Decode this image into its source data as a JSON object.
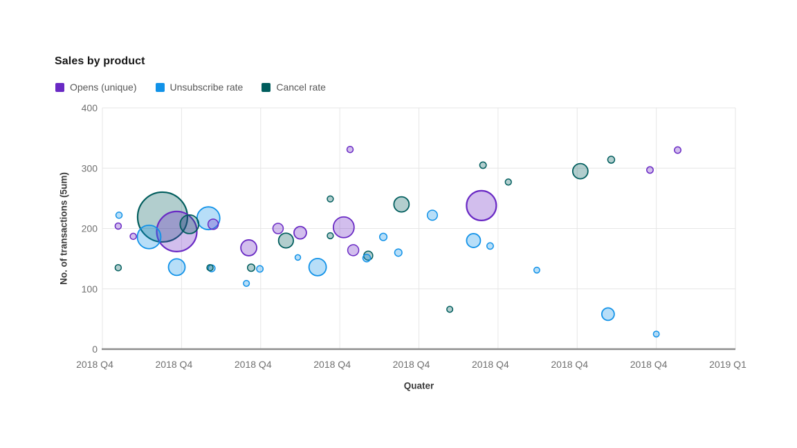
{
  "chart_data": {
    "type": "scatter",
    "subtype": "bubble",
    "title": "Sales by product",
    "xlabel": "Quater",
    "ylabel": "No. of transactions (5um)",
    "x_tick_labels": [
      "2018 Q4",
      "2018 Q4",
      "2018 Q4",
      "2018 Q4",
      "2018 Q4",
      "2018 Q4",
      "2018 Q4",
      "2018 Q4",
      "2019 Q1"
    ],
    "y_ticks": [
      0,
      100,
      200,
      300,
      400
    ],
    "ylim": [
      0,
      400
    ],
    "x_units": "tick index (0 = leftmost gridline, 8 = rightmost)",
    "grid": true,
    "legend_position": "top",
    "series": [
      {
        "name": "Opens (unique)",
        "color": "#6929c4",
        "points": [
          {
            "x": 0.2,
            "y": 204,
            "r": 4.5
          },
          {
            "x": 0.39,
            "y": 187,
            "r": 4.5
          },
          {
            "x": 0.94,
            "y": 195,
            "r": 29
          },
          {
            "x": 1.4,
            "y": 207,
            "r": 7.5
          },
          {
            "x": 1.85,
            "y": 168,
            "r": 11.5
          },
          {
            "x": 2.22,
            "y": 200,
            "r": 7.5
          },
          {
            "x": 2.5,
            "y": 193,
            "r": 9
          },
          {
            "x": 3.05,
            "y": 202,
            "r": 15
          },
          {
            "x": 3.13,
            "y": 331,
            "r": 4.5
          },
          {
            "x": 3.17,
            "y": 164,
            "r": 8
          },
          {
            "x": 4.79,
            "y": 238,
            "r": 21.5
          },
          {
            "x": 6.92,
            "y": 297,
            "r": 4.7
          },
          {
            "x": 7.27,
            "y": 330,
            "r": 4.7
          }
        ]
      },
      {
        "name": "Unsubscribe rate",
        "color": "#1192e8",
        "points": [
          {
            "x": 0.21,
            "y": 222,
            "r": 4.5
          },
          {
            "x": 0.59,
            "y": 186,
            "r": 17
          },
          {
            "x": 0.94,
            "y": 136,
            "r": 12
          },
          {
            "x": 1.34,
            "y": 217,
            "r": 16.5
          },
          {
            "x": 1.38,
            "y": 134,
            "r": 5
          },
          {
            "x": 1.82,
            "y": 109,
            "r": 4.3
          },
          {
            "x": 1.99,
            "y": 133,
            "r": 4.7
          },
          {
            "x": 2.47,
            "y": 152,
            "r": 4
          },
          {
            "x": 2.72,
            "y": 136,
            "r": 12.5
          },
          {
            "x": 3.34,
            "y": 151,
            "r": 5.5
          },
          {
            "x": 3.55,
            "y": 186,
            "r": 5.3
          },
          {
            "x": 3.74,
            "y": 160,
            "r": 5.3
          },
          {
            "x": 4.17,
            "y": 222,
            "r": 7.3
          },
          {
            "x": 4.69,
            "y": 180,
            "r": 10
          },
          {
            "x": 4.9,
            "y": 171,
            "r": 4.7
          },
          {
            "x": 5.49,
            "y": 131,
            "r": 4.2
          },
          {
            "x": 6.39,
            "y": 58,
            "r": 9
          },
          {
            "x": 7.0,
            "y": 25,
            "r": 4.2
          }
        ]
      },
      {
        "name": "Cancel rate",
        "color": "#005d5d",
        "points": [
          {
            "x": 0.2,
            "y": 135,
            "r": 4.5
          },
          {
            "x": 0.76,
            "y": 219,
            "r": 36
          },
          {
            "x": 1.1,
            "y": 207,
            "r": 13.5
          },
          {
            "x": 1.36,
            "y": 135,
            "r": 4.5
          },
          {
            "x": 1.88,
            "y": 135,
            "r": 5.3
          },
          {
            "x": 2.32,
            "y": 180,
            "r": 10.7
          },
          {
            "x": 2.88,
            "y": 249,
            "r": 4.4
          },
          {
            "x": 2.88,
            "y": 188,
            "r": 4.4
          },
          {
            "x": 3.36,
            "y": 155,
            "r": 6.5
          },
          {
            "x": 3.78,
            "y": 240,
            "r": 11
          },
          {
            "x": 4.39,
            "y": 66,
            "r": 4.3
          },
          {
            "x": 4.81,
            "y": 305,
            "r": 4.7
          },
          {
            "x": 5.13,
            "y": 277,
            "r": 4.4
          },
          {
            "x": 6.04,
            "y": 295,
            "r": 11
          },
          {
            "x": 6.43,
            "y": 314,
            "r": 5
          }
        ]
      }
    ]
  }
}
